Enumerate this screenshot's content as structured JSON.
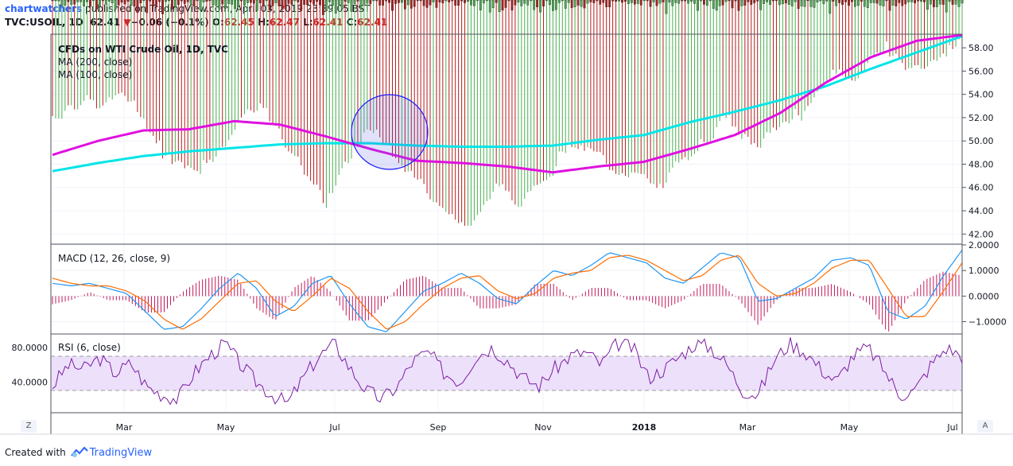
{
  "header": {
    "author": "chartwatchers",
    "published_text": "published on TradingView.com, April 03, 2019 23:39:05 BST",
    "symbol_prefix": "TVC:USOIL, 1D",
    "last_price": "62.41",
    "change_arrow": "▼",
    "change_text": "−0.06 (−0.1%)",
    "o_label": "O:",
    "o_value": "62.45",
    "h_label": "H:",
    "h_value": "62.47",
    "l_label": "L:",
    "l_value": "62.41",
    "c_label": "C:",
    "c_value": "62.41"
  },
  "legend": {
    "title": "CFDs on WTI Crude Oil, 1D, TVC",
    "ma200": "MA (200, close)",
    "ma100": "MA (100, close)",
    "macd": "MACD (12, 26, close, 9)",
    "rsi": "RSI (6, close)"
  },
  "footer": {
    "created_with": "Created with",
    "brand": "TradingView"
  },
  "corners": {
    "left": "Z",
    "right": "A"
  },
  "colors": {
    "candle_up": "#4caf50",
    "candle_down": "#b71c1c",
    "ma200": "#00e5e8",
    "ma100": "#e010e0",
    "macd_line": "#2196f3",
    "signal_line": "#ff6d00",
    "histogram": "#c2185b",
    "rsi_line": "#7b1fa2",
    "rsi_band": "#ede0fb",
    "highlight_circle": "#1a1aff"
  },
  "chart_data": [
    {
      "type": "candlestick",
      "title": "CFDs on WTI Crude Oil, 1D, TVC",
      "x_ticks": [
        "Mar",
        "May",
        "Jul",
        "Sep",
        "Nov",
        "2018",
        "Mar",
        "May",
        "Jul"
      ],
      "y_ticks": [
        42.0,
        44.0,
        46.0,
        48.0,
        50.0,
        52.0,
        54.0,
        56.0,
        58.0
      ],
      "ylim": [
        41.2,
        59.1
      ],
      "grid": true,
      "series": [
        {
          "name": "close (approx.)",
          "values": [
            52.2,
            53.4,
            53.9,
            53.1,
            54.6,
            53.8,
            51.6,
            48.9,
            48.4,
            48.0,
            49.0,
            50.8,
            52.9,
            53.2,
            51.4,
            49.1,
            47.5,
            45.0,
            47.9,
            50.1,
            51.4,
            49.8,
            48.2,
            46.5,
            45.2,
            44.0,
            42.6,
            45.0,
            47.2,
            45.0,
            46.5,
            47.3,
            49.8,
            50.0,
            49.4,
            47.8,
            47.5,
            47.2,
            46.3,
            48.2,
            49.5,
            50.5,
            52.6,
            51.0,
            49.8,
            51.5,
            52.2,
            52.8,
            54.8,
            56.4,
            55.5,
            57.2,
            58.5,
            57.5,
            56.3,
            57.2,
            58.2,
            59.2
          ]
        },
        {
          "name": "MA (200, close)",
          "values": [
            47.4,
            48.1,
            48.7,
            49.1,
            49.4,
            49.7,
            49.8,
            49.8,
            49.6,
            49.5,
            49.5,
            49.6,
            50.1,
            50.5,
            51.6,
            52.5,
            53.5,
            54.7,
            56.2,
            57.6,
            59.0
          ]
        },
        {
          "name": "MA (100, close)",
          "values": [
            48.8,
            50.0,
            50.9,
            51.0,
            51.7,
            51.4,
            50.4,
            49.3,
            48.3,
            48.1,
            47.8,
            47.3,
            47.8,
            48.2,
            49.3,
            50.5,
            52.4,
            55.0,
            57.2,
            58.6,
            59.1
          ]
        }
      ]
    },
    {
      "type": "line",
      "title": "MACD (12, 26, close, 9)",
      "y_ticks": [
        -1.0,
        0.0,
        1.0,
        2.0
      ],
      "ylim": [
        -1.45,
        2.0
      ],
      "series": [
        {
          "name": "MACD",
          "values": [
            0.5,
            0.4,
            0.5,
            0.3,
            0.1,
            -0.6,
            -1.3,
            -1.2,
            -0.5,
            0.3,
            0.9,
            0.3,
            -0.8,
            -0.4,
            0.5,
            0.8,
            -0.3,
            -1.2,
            -1.4,
            -0.6,
            0.2,
            0.5,
            0.9,
            0.5,
            -0.1,
            -0.3,
            0.4,
            1.0,
            0.8,
            1.2,
            1.7,
            1.5,
            1.3,
            0.7,
            0.5,
            1.1,
            1.7,
            1.5,
            -0.2,
            -0.1,
            0.3,
            0.7,
            1.4,
            1.5,
            1.2,
            -0.6,
            -0.9,
            -0.4,
            0.8,
            1.8
          ]
        },
        {
          "name": "Signal",
          "values": [
            0.7,
            0.5,
            0.4,
            0.4,
            0.2,
            -0.2,
            -0.9,
            -1.3,
            -0.9,
            -0.2,
            0.5,
            0.6,
            -0.2,
            -0.6,
            0.0,
            0.7,
            0.3,
            -0.6,
            -1.3,
            -1.0,
            -0.3,
            0.3,
            0.7,
            0.8,
            0.2,
            -0.1,
            0.1,
            0.7,
            0.9,
            1.0,
            1.5,
            1.6,
            1.4,
            1.0,
            0.6,
            0.8,
            1.4,
            1.6,
            0.5,
            0.0,
            0.1,
            0.5,
            1.1,
            1.4,
            1.4,
            0.3,
            -0.8,
            -0.8,
            0.2,
            1.3
          ]
        }
      ]
    },
    {
      "type": "line",
      "title": "RSI (6, close)",
      "y_ticks": [
        40.0,
        80.0
      ],
      "ylim": [
        5,
        95
      ],
      "bands": [
        30,
        70
      ],
      "series": [
        {
          "name": "RSI",
          "values": [
            35,
            60,
            55,
            68,
            50,
            62,
            35,
            25,
            20,
            50,
            70,
            85,
            60,
            40,
            25,
            15,
            45,
            70,
            85,
            55,
            30,
            20,
            35,
            65,
            75,
            50,
            40,
            70,
            80,
            65,
            45,
            35,
            55,
            70,
            75,
            60,
            85,
            80,
            45,
            55,
            70,
            85,
            80,
            60,
            30,
            25,
            65,
            85,
            75,
            55,
            40,
            70,
            80,
            55,
            25,
            30,
            60,
            80,
            70
          ]
        }
      ]
    }
  ]
}
